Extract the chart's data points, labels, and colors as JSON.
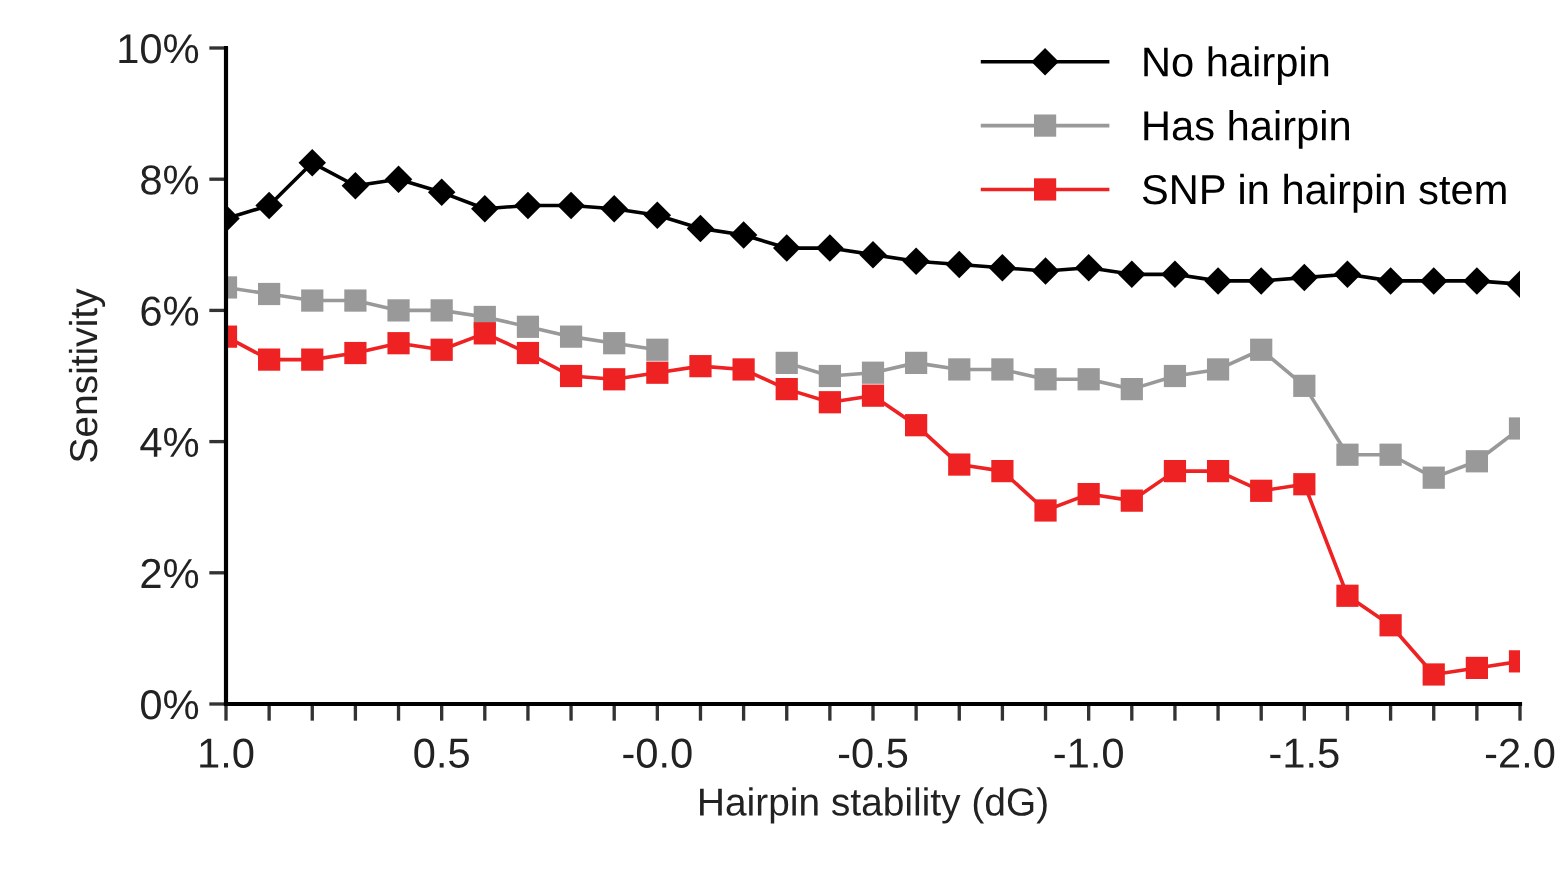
{
  "chart_data": {
    "type": "line",
    "xlabel": "Hairpin stability (dG)",
    "ylabel": "Sensitivity",
    "x": [
      1.0,
      0.9,
      0.8,
      0.7,
      0.6,
      0.5,
      0.4,
      0.3,
      0.2,
      0.1,
      0.0,
      -0.1,
      -0.2,
      -0.3,
      -0.4,
      -0.5,
      -0.6,
      -0.7,
      -0.8,
      -0.9,
      -1.0,
      -1.1,
      -1.2,
      -1.3,
      -1.4,
      -1.5,
      -1.6,
      -1.7,
      -1.8,
      -1.9,
      -2.0
    ],
    "series": [
      {
        "name": "No hairpin",
        "color": "#000000",
        "marker": "diamond",
        "values": [
          7.4,
          7.6,
          8.25,
          7.9,
          8.0,
          7.8,
          7.55,
          7.6,
          7.6,
          7.55,
          7.45,
          7.25,
          7.15,
          6.95,
          6.95,
          6.85,
          6.75,
          6.7,
          6.65,
          6.6,
          6.65,
          6.55,
          6.55,
          6.45,
          6.45,
          6.5,
          6.55,
          6.45,
          6.45,
          6.45,
          6.4
        ]
      },
      {
        "name": "Has hairpin",
        "color": "#999999",
        "marker": "square",
        "values": [
          6.35,
          6.25,
          6.15,
          6.15,
          6.0,
          6.0,
          5.9,
          5.75,
          5.6,
          5.5,
          5.4,
          null,
          null,
          5.2,
          5.0,
          5.05,
          5.2,
          5.1,
          5.1,
          4.95,
          4.95,
          4.8,
          5.0,
          5.1,
          5.4,
          4.85,
          3.8,
          3.8,
          3.45,
          3.7,
          4.2
        ]
      },
      {
        "name": "SNP in hairpin stem",
        "color": "#ee2222",
        "marker": "square",
        "values": [
          5.6,
          5.25,
          5.25,
          5.35,
          5.5,
          5.4,
          5.65,
          5.35,
          5.0,
          4.95,
          5.05,
          5.15,
          5.1,
          4.8,
          4.6,
          4.7,
          4.25,
          3.65,
          3.55,
          2.95,
          3.2,
          3.1,
          3.55,
          3.55,
          3.25,
          3.35,
          1.65,
          1.2,
          0.45,
          0.55,
          0.65
        ]
      }
    ],
    "xlim": [
      1.0,
      -2.0
    ],
    "xticks": [
      {
        "value": 1.0,
        "label": "1.0"
      },
      {
        "value": 0.9,
        "label": null
      },
      {
        "value": 0.8,
        "label": null
      },
      {
        "value": 0.7,
        "label": null
      },
      {
        "value": 0.6,
        "label": null
      },
      {
        "value": 0.5,
        "label": "0.5"
      },
      {
        "value": 0.4,
        "label": null
      },
      {
        "value": 0.3,
        "label": null
      },
      {
        "value": 0.2,
        "label": null
      },
      {
        "value": 0.1,
        "label": null
      },
      {
        "value": 0.0,
        "label": "-0.0"
      },
      {
        "value": -0.1,
        "label": null
      },
      {
        "value": -0.2,
        "label": null
      },
      {
        "value": -0.3,
        "label": null
      },
      {
        "value": -0.4,
        "label": null
      },
      {
        "value": -0.5,
        "label": "-0.5"
      },
      {
        "value": -0.6,
        "label": null
      },
      {
        "value": -0.7,
        "label": null
      },
      {
        "value": -0.8,
        "label": null
      },
      {
        "value": -0.9,
        "label": null
      },
      {
        "value": -1.0,
        "label": "-1.0"
      },
      {
        "value": -1.1,
        "label": null
      },
      {
        "value": -1.2,
        "label": null
      },
      {
        "value": -1.3,
        "label": null
      },
      {
        "value": -1.4,
        "label": null
      },
      {
        "value": -1.5,
        "label": "-1.5"
      },
      {
        "value": -1.6,
        "label": null
      },
      {
        "value": -1.7,
        "label": null
      },
      {
        "value": -1.8,
        "label": null
      },
      {
        "value": -1.9,
        "label": null
      },
      {
        "value": -2.0,
        "label": "-2.0"
      }
    ],
    "ylim": [
      0,
      10
    ],
    "yticks": [
      {
        "value": 0,
        "label": "0%"
      },
      {
        "value": 2,
        "label": "2%"
      },
      {
        "value": 4,
        "label": "4%"
      },
      {
        "value": 6,
        "label": "6%"
      },
      {
        "value": 8,
        "label": "8%"
      },
      {
        "value": 10,
        "label": "10%"
      }
    ],
    "grid": false,
    "legend": "top right",
    "line_style": "solid"
  }
}
